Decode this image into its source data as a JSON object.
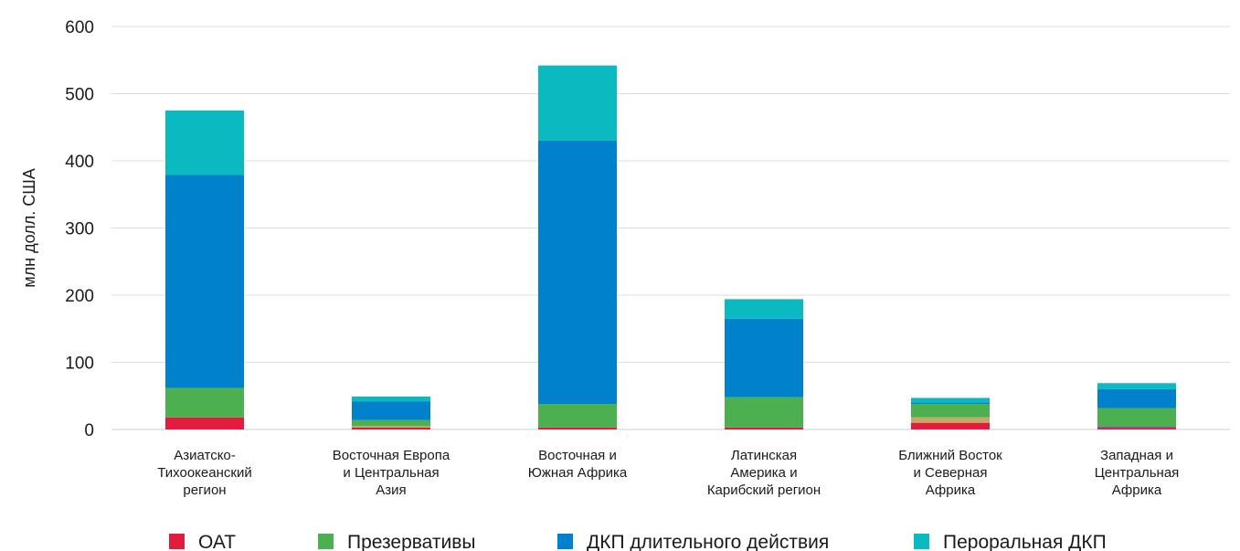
{
  "chart_data": {
    "type": "bar",
    "stacked": true,
    "title": "",
    "xlabel": "",
    "ylabel": "млн долл. США",
    "ylim": [
      0,
      600
    ],
    "yticks": [
      0,
      100,
      200,
      300,
      400,
      500,
      600
    ],
    "grid": true,
    "legend_position": "bottom",
    "categories": [
      [
        "Азиатско-",
        "Тихоокеанский",
        "регион"
      ],
      [
        "Восточная Европа",
        "и Центральная",
        "Азия"
      ],
      [
        "Восточная и",
        "Южная Африка"
      ],
      [
        "Латинская",
        "Америка и",
        "Карибский регион"
      ],
      [
        "Ближний Восток",
        "и Северная",
        "Африка"
      ],
      [
        "Западная и",
        "Центральная",
        "Африка"
      ]
    ],
    "series": [
      {
        "name": "ОАТ",
        "color": "#e31b3c",
        "values": [
          18,
          3,
          3,
          3,
          10,
          2
        ]
      },
      {
        "name": "",
        "color": "#c9a86a",
        "values": [
          0,
          2,
          0,
          0,
          8,
          0
        ]
      },
      {
        "name": "",
        "color": "#8e44ad",
        "values": [
          0,
          0,
          0,
          0,
          0,
          2
        ]
      },
      {
        "name": "Презервативы",
        "color": "#4caf50",
        "values": [
          44,
          9,
          35,
          45,
          20,
          28
        ]
      },
      {
        "name": "ДКП длительного действия",
        "color": "#0081cc",
        "values": [
          317,
          28,
          392,
          117,
          2,
          28
        ]
      },
      {
        "name": "Пероральная ДКП",
        "color": "#0bb9c0",
        "values": [
          96,
          7,
          112,
          29,
          7,
          9
        ]
      }
    ]
  }
}
